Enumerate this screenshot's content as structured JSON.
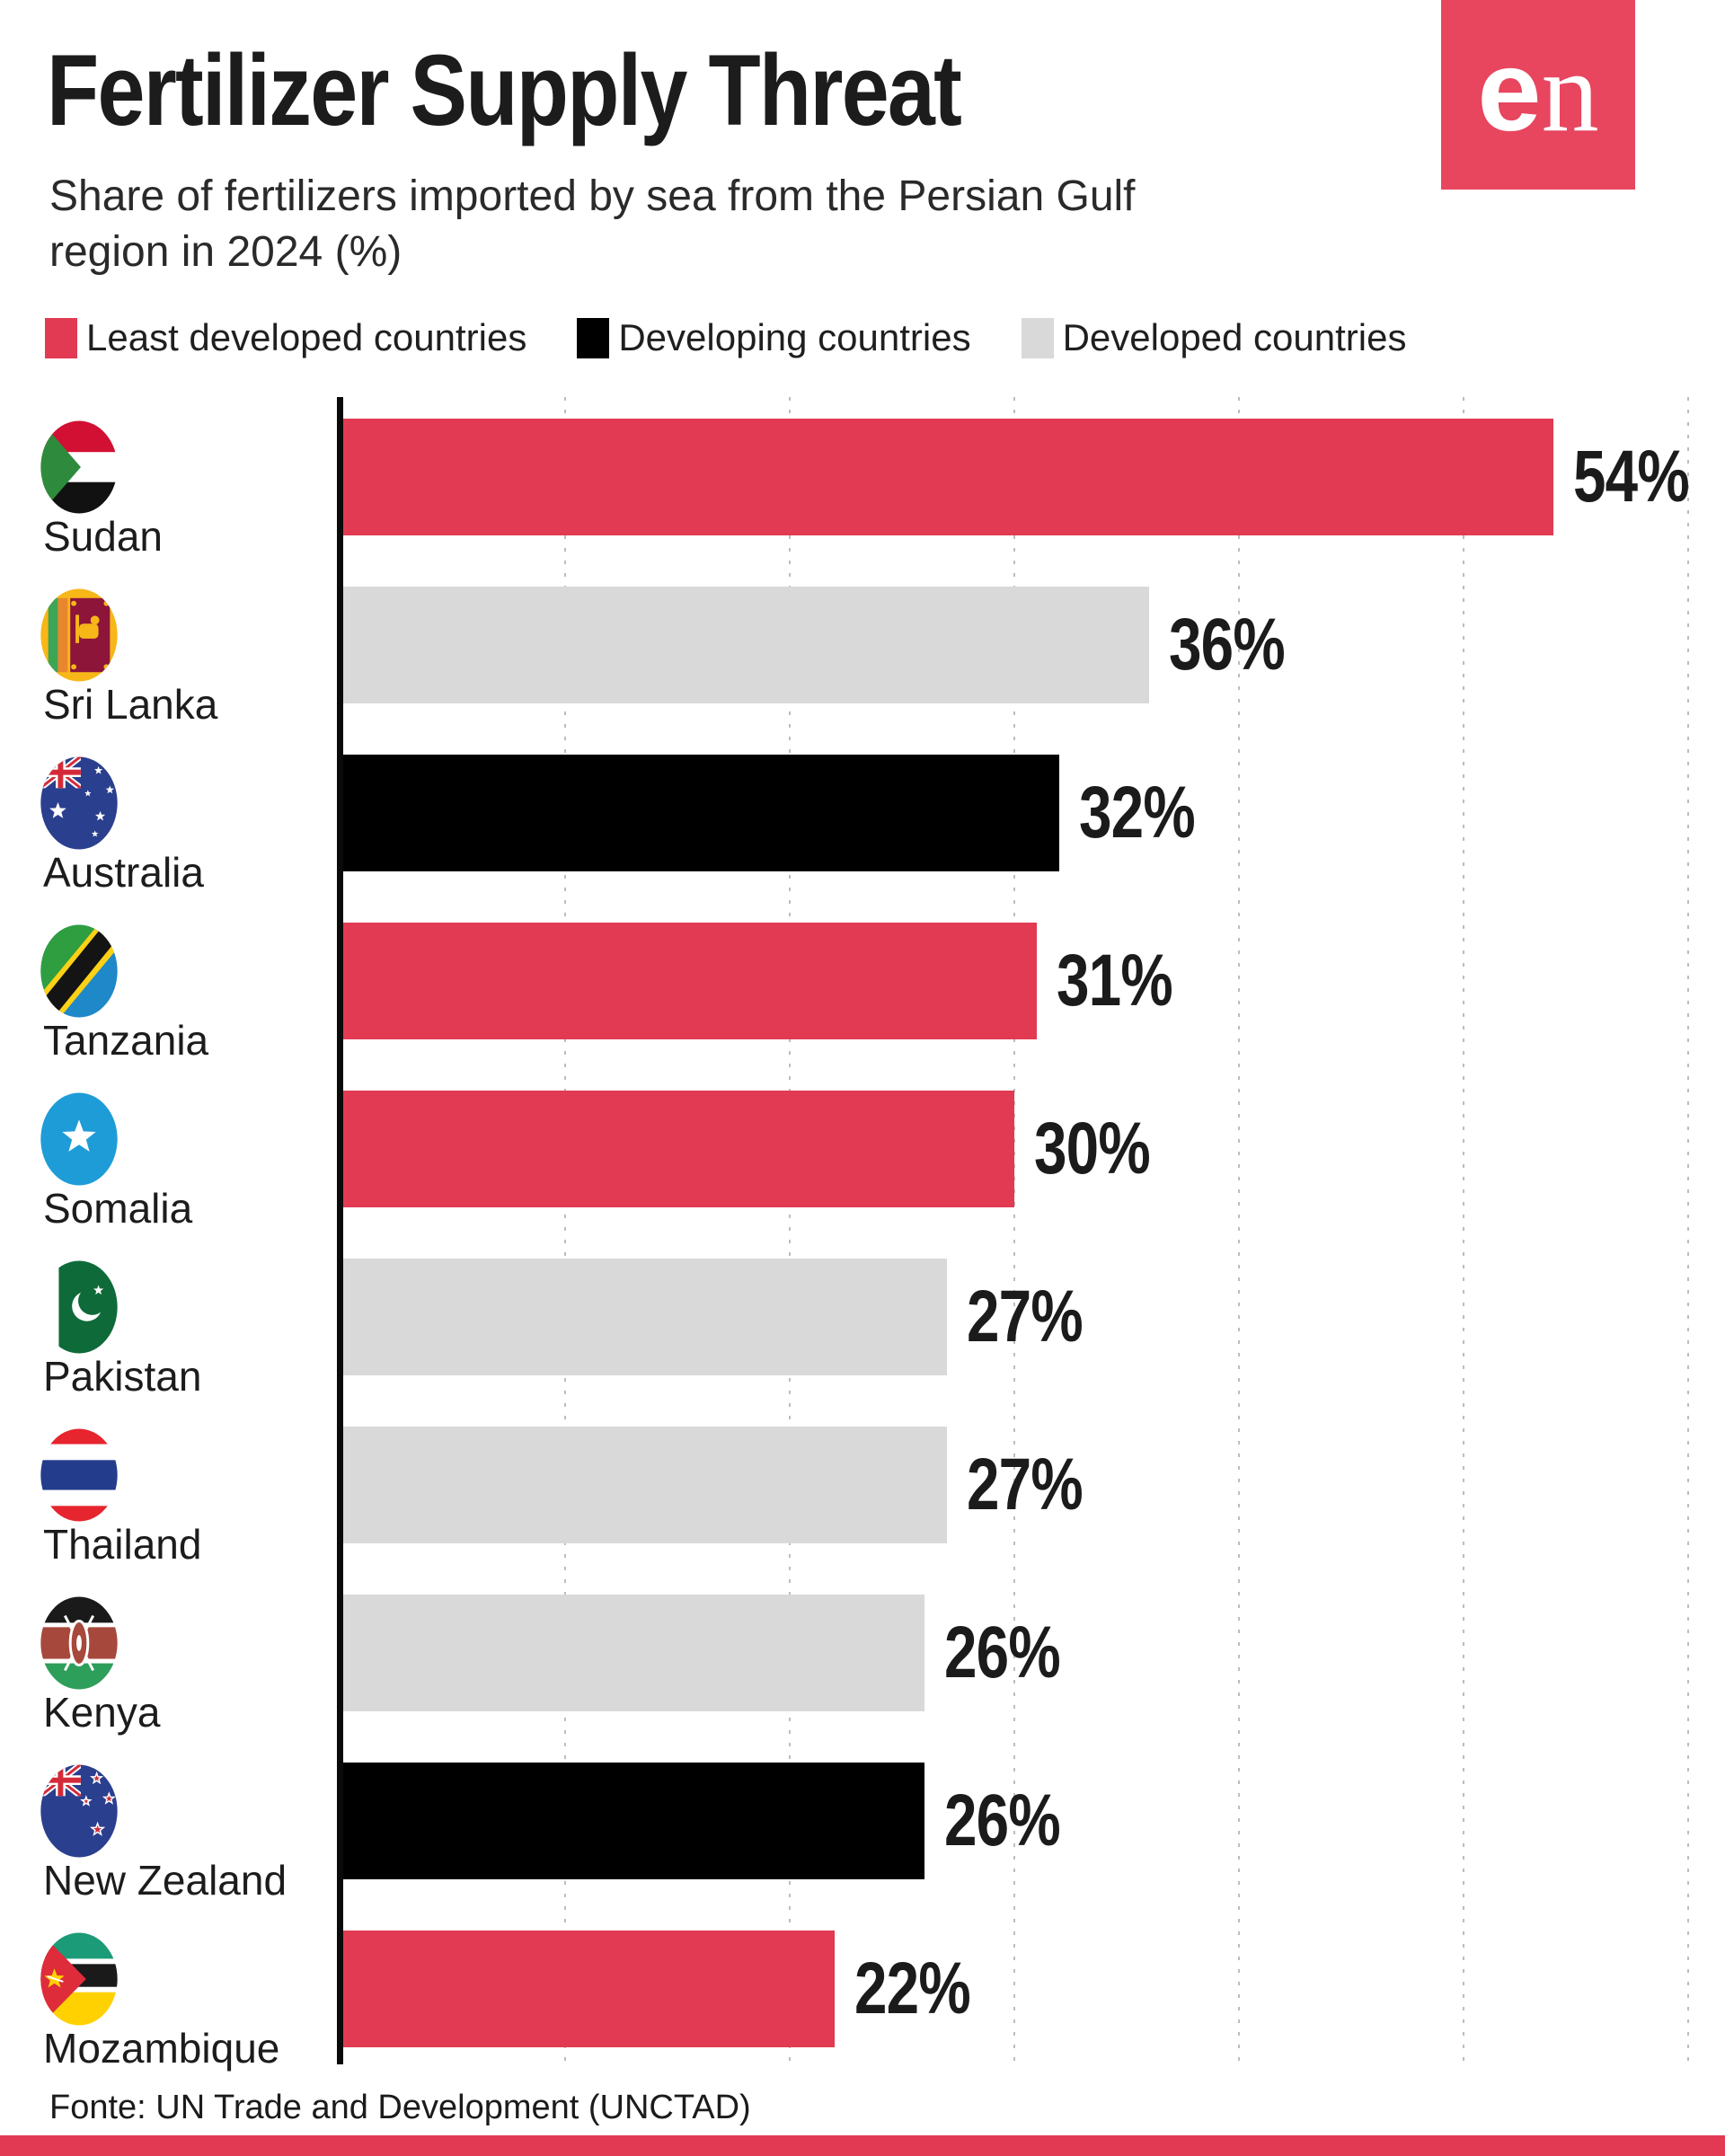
{
  "header": {
    "title": "Fertilizer Supply Threat",
    "subtitle_line1": "Share of fertilizers imported by sea from the Persian Gulf",
    "subtitle_line2": "region in 2024 (%)"
  },
  "brand": {
    "logo_e": "e",
    "logo_n": "n"
  },
  "colors": {
    "least_developed": "#E23A52",
    "developing": "#000000",
    "developed": "#D9D9D9",
    "logo_bg": "#E8455F",
    "bottom_strip": "#E23A52",
    "axis": "#0A0A0A",
    "gridline": "#BDBDBD",
    "text": "#1B1B1B"
  },
  "legend": {
    "items": [
      {
        "label": "Least developed countries",
        "category": "least_developed"
      },
      {
        "label": "Developing countries",
        "category": "developing"
      },
      {
        "label": "Developed countries",
        "category": "developed"
      }
    ]
  },
  "chart_data": {
    "type": "bar",
    "orientation": "horizontal",
    "unit": "%",
    "title": "Fertilizer Supply Threat",
    "xlabel": "",
    "ylabel": "",
    "xlim": [
      0,
      60
    ],
    "gridline_step": 10,
    "grid": "dotted-vertical",
    "legend_position": "top",
    "categories": [
      "Sudan",
      "Sri Lanka",
      "Australia",
      "Tanzania",
      "Somalia",
      "Pakistan",
      "Thailand",
      "Kenya",
      "New Zealand",
      "Mozambique"
    ],
    "values": [
      54,
      36,
      32,
      31,
      30,
      27,
      27,
      26,
      26,
      22
    ],
    "bars": [
      {
        "country": "Sudan",
        "value": 54,
        "label": "54%",
        "category": "least_developed",
        "flag": "sudan"
      },
      {
        "country": "Sri Lanka",
        "value": 36,
        "label": "36%",
        "category": "developed",
        "flag": "sri-lanka"
      },
      {
        "country": "Australia",
        "value": 32,
        "label": "32%",
        "category": "developing",
        "flag": "australia"
      },
      {
        "country": "Tanzania",
        "value": 31,
        "label": "31%",
        "category": "least_developed",
        "flag": "tanzania"
      },
      {
        "country": "Somalia",
        "value": 30,
        "label": "30%",
        "category": "least_developed",
        "flag": "somalia"
      },
      {
        "country": "Pakistan",
        "value": 27,
        "label": "27%",
        "category": "developed",
        "flag": "pakistan"
      },
      {
        "country": "Thailand",
        "value": 27,
        "label": "27%",
        "category": "developed",
        "flag": "thailand"
      },
      {
        "country": "Kenya",
        "value": 26,
        "label": "26%",
        "category": "developed",
        "flag": "kenya"
      },
      {
        "country": "New Zealand",
        "value": 26,
        "label": "26%",
        "category": "developing",
        "flag": "new-zealand"
      },
      {
        "country": "Mozambique",
        "value": 22,
        "label": "22%",
        "category": "least_developed",
        "flag": "mozambique"
      }
    ]
  },
  "footer": {
    "source": "Fonte: UN Trade and Development (UNCTAD)"
  }
}
